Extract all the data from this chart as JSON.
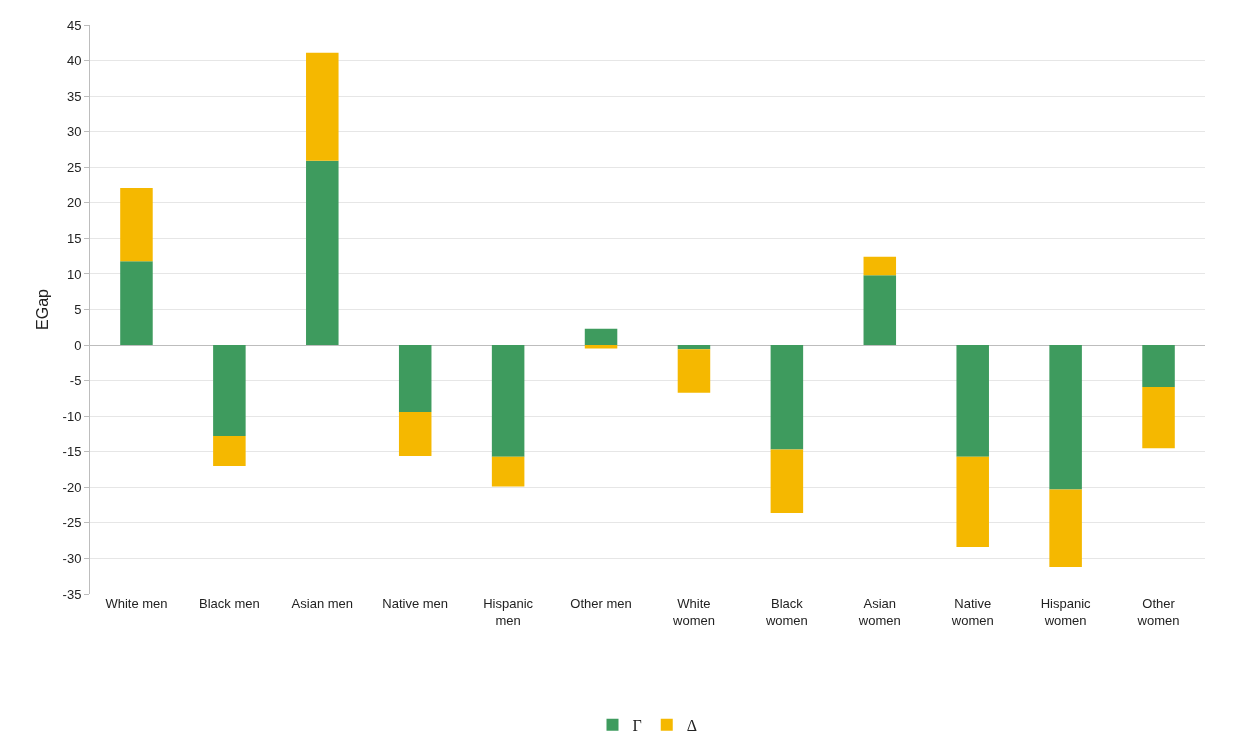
{
  "chart_data": {
    "type": "bar",
    "stacked": true,
    "ylabel": "EGap",
    "categories": [
      "White men",
      "Black men",
      "Asian men",
      "Native men",
      "Hispanic men",
      "Other men",
      "White women",
      "Black women",
      "Asian women",
      "Native women",
      "Hispanic women",
      "Other women"
    ],
    "series": [
      {
        "name": "Γ",
        "color": "#3e9b5e",
        "values": [
          11.8,
          -12.8,
          25.9,
          -9.4,
          -15.7,
          2.3,
          -0.6,
          -14.7,
          9.8,
          -15.7,
          -20.3,
          -5.9
        ]
      },
      {
        "name": "Δ",
        "color": "#f5b800",
        "values": [
          10.3,
          -4.2,
          15.2,
          -6.2,
          -4.2,
          -0.5,
          -6.1,
          -8.9,
          2.6,
          -12.7,
          -10.9,
          -8.6
        ]
      }
    ],
    "ylim": [
      -35,
      45
    ],
    "yticks": [
      -35,
      -30,
      -25,
      -20,
      -15,
      -10,
      -5,
      0,
      5,
      10,
      15,
      20,
      25,
      30,
      35,
      40,
      45
    ],
    "grid": "y",
    "legend": "bottom"
  }
}
